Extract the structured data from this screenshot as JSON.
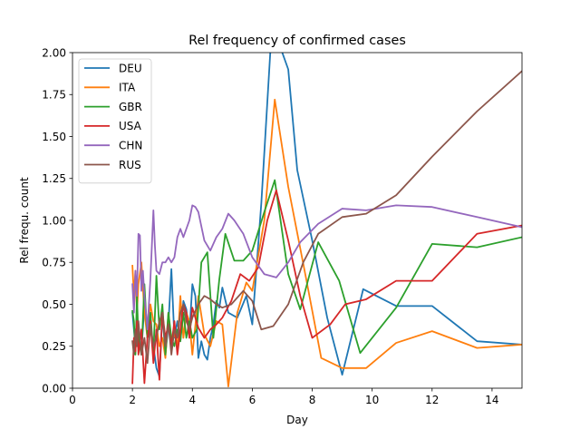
{
  "chart_data": {
    "type": "line",
    "title": "Rel frequency of confirmed cases",
    "xlabel": "Day",
    "ylabel": "Rel frequ. count",
    "xlim": [
      0,
      15
    ],
    "ylim": [
      0,
      2.0
    ],
    "xticks": [
      0,
      2,
      4,
      6,
      8,
      10,
      12,
      14
    ],
    "xtick_labels": [
      "0",
      "2",
      "4",
      "6",
      "8",
      "10",
      "12",
      "14"
    ],
    "yticks": [
      0,
      0.25,
      0.5,
      0.75,
      1.0,
      1.25,
      1.5,
      1.75,
      2.0
    ],
    "ytick_labels": [
      "0.00",
      "0.25",
      "0.50",
      "0.75",
      "1.00",
      "1.25",
      "1.50",
      "1.75",
      "2.00"
    ],
    "grid": false,
    "legend_position": "upper-left",
    "series": [
      {
        "name": "DEU",
        "color": "#1f77b4",
        "x": [
          2.0,
          2.05,
          2.1,
          2.15,
          2.2,
          2.3,
          2.4,
          2.5,
          2.6,
          2.7,
          2.8,
          2.9,
          3.0,
          3.1,
          3.2,
          3.3,
          3.4,
          3.5,
          3.6,
          3.7,
          3.8,
          3.9,
          4.0,
          4.1,
          4.2,
          4.3,
          4.4,
          4.5,
          4.6,
          4.7,
          4.8,
          4.9,
          5.0,
          5.2,
          5.5,
          5.8,
          6.0,
          6.3,
          6.6,
          6.9,
          7.2,
          7.5,
          8.0,
          8.5,
          9.0,
          9.7,
          10.8,
          12.0,
          13.5,
          15.0
        ],
        "y": [
          0.45,
          0.35,
          0.25,
          0.38,
          0.3,
          0.22,
          0.5,
          0.3,
          0.35,
          0.25,
          0.12,
          0.07,
          0.45,
          0.2,
          0.38,
          0.71,
          0.3,
          0.4,
          0.28,
          0.52,
          0.47,
          0.32,
          0.62,
          0.55,
          0.18,
          0.28,
          0.2,
          0.17,
          0.3,
          0.38,
          0.52,
          0.48,
          0.6,
          0.45,
          0.42,
          0.55,
          0.38,
          1.1,
          2.0,
          2.05,
          1.9,
          1.3,
          0.88,
          0.42,
          0.08,
          0.59,
          0.49,
          0.49,
          0.28,
          0.26
        ]
      },
      {
        "name": "ITA",
        "color": "#ff7f0e",
        "x": [
          2.0,
          2.05,
          2.1,
          2.15,
          2.2,
          2.3,
          2.4,
          2.5,
          2.6,
          2.7,
          2.8,
          2.9,
          3.0,
          3.1,
          3.2,
          3.3,
          3.4,
          3.5,
          3.6,
          3.7,
          3.8,
          3.9,
          4.0,
          4.2,
          4.4,
          4.6,
          4.8,
          5.0,
          5.2,
          5.5,
          5.8,
          6.0,
          6.4,
          6.75,
          7.2,
          7.8,
          8.3,
          9.0,
          9.8,
          10.8,
          12.0,
          13.5,
          15.0
        ],
        "y": [
          0.73,
          0.55,
          0.7,
          0.45,
          0.62,
          0.75,
          0.45,
          0.3,
          0.5,
          0.4,
          0.38,
          0.25,
          0.3,
          0.18,
          0.45,
          0.28,
          0.33,
          0.25,
          0.55,
          0.3,
          0.45,
          0.4,
          0.2,
          0.55,
          0.32,
          0.25,
          0.4,
          0.38,
          0.01,
          0.45,
          0.63,
          0.58,
          1.0,
          1.72,
          1.2,
          0.65,
          0.18,
          0.12,
          0.12,
          0.27,
          0.34,
          0.24,
          0.26
        ]
      },
      {
        "name": "GBR",
        "color": "#2ca02c",
        "x": [
          2.0,
          2.05,
          2.1,
          2.15,
          2.2,
          2.3,
          2.4,
          2.5,
          2.6,
          2.7,
          2.8,
          2.9,
          3.0,
          3.1,
          3.2,
          3.3,
          3.4,
          3.5,
          3.6,
          3.7,
          3.8,
          3.9,
          4.0,
          4.15,
          4.3,
          4.5,
          4.7,
          4.9,
          5.1,
          5.4,
          5.7,
          6.0,
          6.4,
          6.75,
          7.2,
          7.6,
          8.2,
          8.9,
          9.6,
          10.8,
          12.0,
          13.5,
          15.0
        ],
        "y": [
          0.46,
          0.4,
          0.2,
          0.55,
          0.3,
          0.2,
          0.62,
          0.3,
          0.45,
          0.2,
          0.67,
          0.35,
          0.5,
          0.2,
          0.45,
          0.3,
          0.25,
          0.35,
          0.28,
          0.45,
          0.3,
          0.4,
          0.3,
          0.35,
          0.75,
          0.81,
          0.3,
          0.65,
          0.92,
          0.76,
          0.76,
          0.82,
          1.05,
          1.24,
          0.68,
          0.47,
          0.87,
          0.64,
          0.21,
          0.48,
          0.86,
          0.84,
          0.9
        ]
      },
      {
        "name": "USA",
        "color": "#d62728",
        "x": [
          2.0,
          2.05,
          2.1,
          2.15,
          2.2,
          2.3,
          2.4,
          2.5,
          2.6,
          2.7,
          2.8,
          2.9,
          3.0,
          3.1,
          3.2,
          3.3,
          3.4,
          3.5,
          3.6,
          3.7,
          3.8,
          3.9,
          4.0,
          4.2,
          4.4,
          4.6,
          4.8,
          5.0,
          5.3,
          5.6,
          5.9,
          6.2,
          6.5,
          6.8,
          7.2,
          7.6,
          8.0,
          8.6,
          9.1,
          9.8,
          10.8,
          12.0,
          13.5,
          15.0
        ],
        "y": [
          0.03,
          0.3,
          0.22,
          0.4,
          0.2,
          0.35,
          0.03,
          0.3,
          0.4,
          0.15,
          0.35,
          0.05,
          0.45,
          0.3,
          0.38,
          0.25,
          0.4,
          0.2,
          0.35,
          0.5,
          0.45,
          0.3,
          0.48,
          0.36,
          0.3,
          0.35,
          0.38,
          0.42,
          0.52,
          0.68,
          0.64,
          0.72,
          1.0,
          1.18,
          0.88,
          0.55,
          0.3,
          0.38,
          0.5,
          0.53,
          0.64,
          0.64,
          0.92,
          0.97
        ]
      },
      {
        "name": "CHN",
        "color": "#9467bd",
        "x": [
          2.0,
          2.05,
          2.1,
          2.15,
          2.2,
          2.25,
          2.3,
          2.35,
          2.4,
          2.5,
          2.6,
          2.7,
          2.75,
          2.8,
          2.9,
          3.0,
          3.1,
          3.2,
          3.3,
          3.4,
          3.5,
          3.6,
          3.7,
          3.8,
          3.9,
          4.0,
          4.1,
          4.2,
          4.4,
          4.6,
          4.8,
          5.0,
          5.2,
          5.4,
          5.7,
          6.0,
          6.4,
          6.8,
          7.2,
          7.6,
          8.2,
          9.0,
          9.8,
          10.8,
          12.0,
          13.5,
          15.0
        ],
        "y": [
          0.62,
          0.45,
          0.7,
          0.55,
          0.92,
          0.91,
          0.58,
          0.7,
          0.55,
          0.35,
          0.65,
          1.06,
          0.85,
          0.7,
          0.68,
          0.75,
          0.75,
          0.78,
          0.75,
          0.78,
          0.9,
          0.95,
          0.9,
          0.95,
          1.0,
          1.09,
          1.08,
          1.05,
          0.88,
          0.82,
          0.9,
          0.95,
          1.04,
          1.0,
          0.92,
          0.78,
          0.68,
          0.66,
          0.75,
          0.87,
          0.98,
          1.07,
          1.06,
          1.09,
          1.08,
          1.02,
          0.96
        ]
      },
      {
        "name": "RUS",
        "color": "#8c564b",
        "x": [
          2.0,
          2.05,
          2.1,
          2.15,
          2.2,
          2.3,
          2.4,
          2.5,
          2.6,
          2.7,
          2.8,
          2.9,
          3.0,
          3.1,
          3.2,
          3.3,
          3.4,
          3.5,
          3.6,
          3.7,
          3.8,
          3.9,
          4.0,
          4.2,
          4.4,
          4.6,
          4.8,
          5.0,
          5.3,
          5.7,
          6.0,
          6.3,
          6.7,
          7.2,
          7.7,
          8.2,
          9.0,
          9.8,
          10.8,
          12.0,
          13.5,
          15.0
        ],
        "y": [
          0.28,
          0.2,
          0.35,
          0.25,
          0.4,
          0.2,
          0.3,
          0.15,
          0.38,
          0.25,
          0.3,
          0.4,
          0.45,
          0.25,
          0.38,
          0.2,
          0.35,
          0.3,
          0.45,
          0.5,
          0.4,
          0.35,
          0.42,
          0.5,
          0.55,
          0.53,
          0.5,
          0.48,
          0.5,
          0.58,
          0.52,
          0.35,
          0.37,
          0.5,
          0.75,
          0.92,
          1.02,
          1.04,
          1.15,
          1.38,
          1.65,
          1.89
        ]
      }
    ]
  }
}
